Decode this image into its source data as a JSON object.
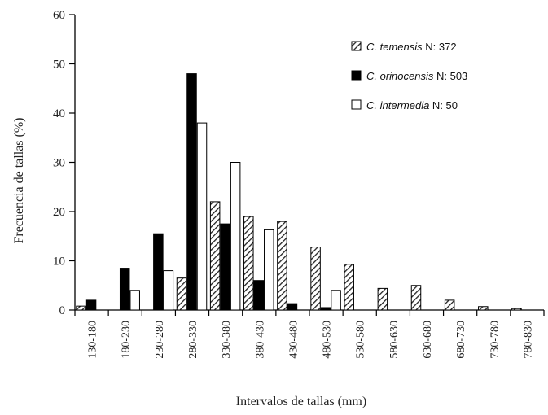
{
  "chart_data": {
    "type": "bar",
    "xlabel": "Intervalos de tallas (mm)",
    "ylabel": "Frecuencia de tallas (%)",
    "ylim": [
      0,
      60
    ],
    "yticks": [
      0,
      10,
      20,
      30,
      40,
      50,
      60
    ],
    "grid": false,
    "legend_position": "top-right",
    "categories": [
      "130-180",
      "180-230",
      "230-280",
      "280-330",
      "330-380",
      "380-430",
      "430-480",
      "480-530",
      "530-580",
      "580-630",
      "630-680",
      "680-730",
      "730-780",
      "780-830"
    ],
    "series": [
      {
        "name": "C. temensis",
        "legend_label": "N: 372",
        "style": "hatched",
        "color": "#ffffff",
        "values": [
          0.8,
          0,
          0,
          6.5,
          22,
          19,
          18,
          12.8,
          9.3,
          4.4,
          5,
          2,
          0.7,
          0.3
        ]
      },
      {
        "name": "C. orinocensis",
        "legend_label": "N: 503",
        "style": "solid",
        "color": "#000000",
        "values": [
          2,
          8.5,
          15.5,
          48,
          17.5,
          6,
          1.3,
          0.5,
          0,
          0,
          0,
          0,
          0,
          0
        ]
      },
      {
        "name": "C. intermedia",
        "legend_label": "N: 50",
        "style": "open",
        "color": "#ffffff",
        "values": [
          0,
          4,
          8,
          38,
          30,
          16.3,
          0,
          4,
          0,
          0,
          0,
          0,
          0,
          0
        ]
      }
    ]
  }
}
